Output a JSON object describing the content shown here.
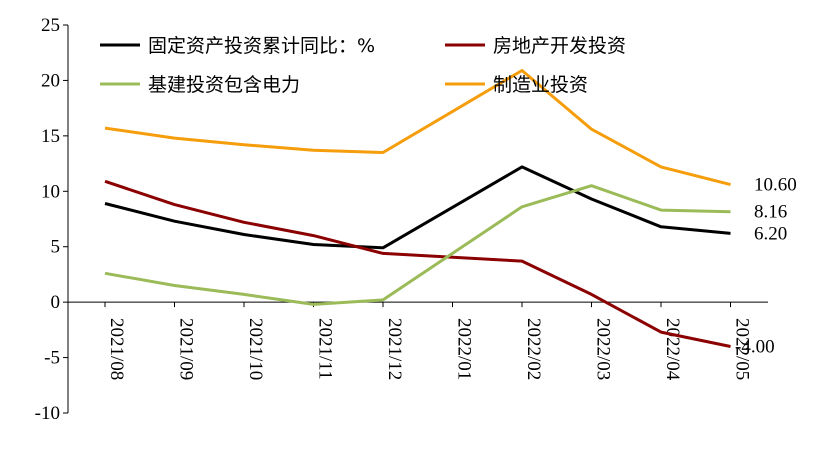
{
  "chart_data": {
    "type": "line",
    "title": "",
    "xlabel": "",
    "ylabel": "",
    "ylim": [
      -10,
      25
    ],
    "yticks": [
      -10,
      -5,
      0,
      5,
      10,
      15,
      20,
      25
    ],
    "grid": false,
    "legend_placement": "top",
    "categories": [
      "2021/08",
      "2021/09",
      "2021/10",
      "2021/11",
      "2021/12",
      "2022/01",
      "2022/02",
      "2022/03",
      "2022/04",
      "2022/05"
    ],
    "series": [
      {
        "name": "固定资产投资累计同比：%",
        "color": "#000000",
        "values": [
          8.9,
          7.3,
          6.1,
          5.2,
          4.9,
          null,
          12.2,
          9.3,
          6.8,
          6.2
        ],
        "end_label": "6.20"
      },
      {
        "name": "房地产开发投资",
        "color": "#8B0000",
        "values": [
          10.9,
          8.8,
          7.2,
          6.0,
          4.4,
          null,
          3.7,
          0.7,
          -2.7,
          -4.0
        ],
        "end_label": "-4.00"
      },
      {
        "name": "基建投资包含电力",
        "color": "#9BBB59",
        "values": [
          2.6,
          1.5,
          0.7,
          -0.2,
          0.2,
          null,
          8.6,
          10.5,
          8.3,
          8.16
        ],
        "end_label": "8.16"
      },
      {
        "name": "制造业投资",
        "color": "#F59D0B",
        "values": [
          15.7,
          14.8,
          14.2,
          13.7,
          13.5,
          null,
          20.9,
          15.6,
          12.2,
          10.6
        ],
        "end_label": "10.60"
      }
    ]
  }
}
